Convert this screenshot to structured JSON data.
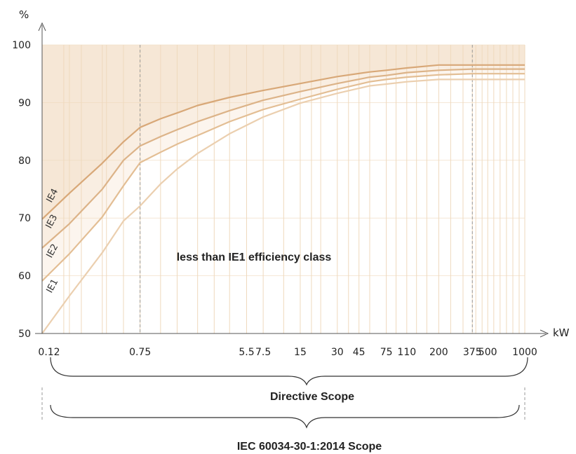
{
  "chart_data": {
    "type": "line",
    "y_unit": "%",
    "x_unit": "kW",
    "x_scale": "log",
    "xlim": [
      0.12,
      1000
    ],
    "ylim": [
      50,
      100
    ],
    "y_ticks": [
      50,
      60,
      70,
      80,
      90,
      100
    ],
    "x_ticks": [
      "0.12",
      "0.75",
      "5.5",
      "7.5",
      "15",
      "30",
      "45",
      "75",
      "110",
      "200",
      "375",
      "500",
      "1000"
    ],
    "x_tick_values": [
      0.12,
      0.75,
      5.5,
      7.5,
      15,
      30,
      45,
      75,
      110,
      200,
      375,
      500,
      1000
    ],
    "grid_x_values": [
      0.12,
      0.18,
      0.2,
      0.25,
      0.37,
      0.4,
      0.55,
      0.75,
      1.1,
      1.5,
      2.2,
      3,
      4,
      5.5,
      7.5,
      11,
      15,
      18.5,
      22,
      30,
      37,
      45,
      55,
      75,
      90,
      110,
      132,
      160,
      200,
      250,
      315,
      375,
      400,
      450,
      500,
      560,
      630,
      710,
      800,
      900,
      1000
    ],
    "dashed_x_values": [
      0.75,
      375
    ],
    "x": [
      0.12,
      0.2,
      0.37,
      0.55,
      0.75,
      1.1,
      1.5,
      2.2,
      4,
      7.5,
      15,
      30,
      55,
      75,
      110,
      200,
      375,
      1000
    ],
    "series": [
      {
        "name": "IE1",
        "color": "#ebcfaf",
        "values": [
          50,
          56.5,
          64,
          69.5,
          72.1,
          75.9,
          78.5,
          81.2,
          84.6,
          87.5,
          89.9,
          91.6,
          92.9,
          93.2,
          93.6,
          94,
          94,
          94
        ]
      },
      {
        "name": "IE2",
        "color": "#e3be94",
        "values": [
          59.1,
          63.8,
          70.2,
          75.6,
          79.6,
          81.4,
          82.8,
          84.3,
          86.7,
          88.8,
          90.6,
          92.3,
          93.6,
          94,
          94.4,
          94.8,
          95,
          95
        ]
      },
      {
        "name": "IE3",
        "color": "#dcb388",
        "values": [
          64.8,
          69,
          75,
          80,
          82.5,
          84.1,
          85.3,
          86.7,
          88.6,
          90.4,
          91.9,
          93.3,
          94.4,
          94.7,
          95.2,
          95.6,
          95.8,
          95.8
        ]
      },
      {
        "name": "IE4",
        "color": "#d8a878",
        "values": [
          69.8,
          74.3,
          79.5,
          83.2,
          85.7,
          87.2,
          88.2,
          89.5,
          90.9,
          92.1,
          93.3,
          94.5,
          95.3,
          95.6,
          96,
          96.5,
          96.5,
          96.5
        ]
      }
    ],
    "annotations": [
      "less than IE1 efficiency class"
    ],
    "scopes": [
      {
        "label": "Directive Scope"
      },
      {
        "label": "IEC 60034-30-1:2014 Scope"
      }
    ],
    "colors": {
      "band_top": "#f6e7d6",
      "band_ie3": "#f9eee2",
      "band_ie2": "#fcf5ee",
      "axis": "#555555",
      "grid": "#efd9bd",
      "dashed": "#9a9a9a"
    }
  }
}
